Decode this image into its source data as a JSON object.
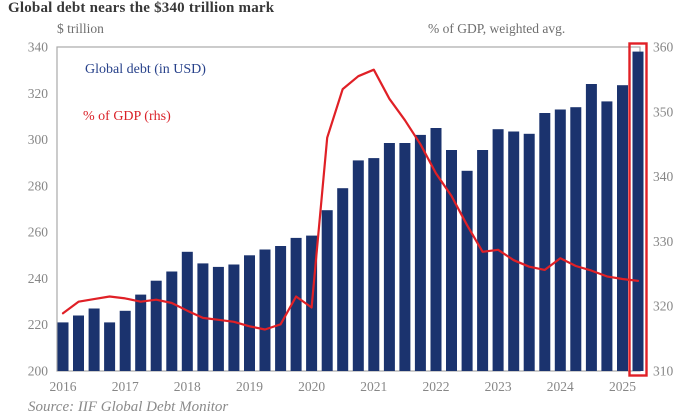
{
  "title": "Global debt nears the $340 trillion mark",
  "source": "Source: IIF Global Debt Monitor",
  "legend": {
    "bar_label": "Global debt (in USD)",
    "line_label": "% of GDP (rhs)"
  },
  "colors": {
    "bar": "#1b336e",
    "line": "#e02026",
    "highlight_box": "#e02026",
    "tick_text": "#878787",
    "plot_border": "#a9a9a9",
    "legend_bar_text": "#27418a",
    "legend_line_text": "#da2128"
  },
  "chart_data": {
    "type": "bar",
    "subtype": "bar-with-line-overlay",
    "title": "Global debt nears the $340 trillion mark",
    "left_axis": {
      "label": "$ trillion",
      "min": 200,
      "max": 340,
      "ticks": [
        340,
        320,
        300,
        280,
        260,
        240,
        220,
        200
      ]
    },
    "right_axis": {
      "label": "% of GDP, weighted avg.",
      "min": 310,
      "max": 360,
      "ticks": [
        360,
        350,
        340,
        330,
        320,
        310
      ]
    },
    "x_year_labels": [
      "2016",
      "2017",
      "2018",
      "2019",
      "2020",
      "2021",
      "2022",
      "2023",
      "2024",
      "2025"
    ],
    "quarters": [
      "2016Q1",
      "2016Q2",
      "2016Q3",
      "2016Q4",
      "2017Q1",
      "2017Q2",
      "2017Q3",
      "2017Q4",
      "2018Q1",
      "2018Q2",
      "2018Q3",
      "2018Q4",
      "2019Q1",
      "2019Q2",
      "2019Q3",
      "2019Q4",
      "2020Q1",
      "2020Q2",
      "2020Q3",
      "2020Q4",
      "2021Q1",
      "2021Q2",
      "2021Q3",
      "2021Q4",
      "2022Q1",
      "2022Q2",
      "2022Q3",
      "2022Q4",
      "2023Q1",
      "2023Q2",
      "2023Q3",
      "2023Q4",
      "2024Q1",
      "2024Q2",
      "2024Q3",
      "2024Q4",
      "2025Q1",
      "2025Q2"
    ],
    "series": [
      {
        "name": "Global debt (in USD)",
        "type": "bar",
        "axis": "left",
        "values": [
          221,
          224,
          227,
          221,
          226,
          233,
          239,
          243,
          251.5,
          246.5,
          245,
          246,
          250,
          252.5,
          254,
          257.5,
          258.5,
          269.5,
          279,
          291,
          292,
          298.5,
          298.5,
          302,
          305,
          295.5,
          286.5,
          295.5,
          304.5,
          303.5,
          302.5,
          311.5,
          313,
          314,
          324,
          316.5,
          323.5,
          338
        ]
      },
      {
        "name": "% of GDP (rhs)",
        "type": "line",
        "axis": "right",
        "values": [
          318.9,
          320.7,
          321.1,
          321.5,
          321.2,
          320.7,
          321.0,
          320.5,
          319.3,
          318.2,
          317.9,
          317.6,
          316.9,
          316.4,
          317.2,
          321.5,
          319.8,
          346.0,
          353.5,
          355.5,
          356.5,
          352.0,
          348.7,
          345.0,
          340.5,
          337.0,
          332.5,
          328.4,
          328.7,
          327.1,
          326.1,
          325.6,
          327.4,
          326.2,
          325.5,
          324.6,
          324.2,
          323.9
        ]
      }
    ],
    "highlight_last_bar": true,
    "grid": false,
    "legend_position": "inside-top-left"
  }
}
